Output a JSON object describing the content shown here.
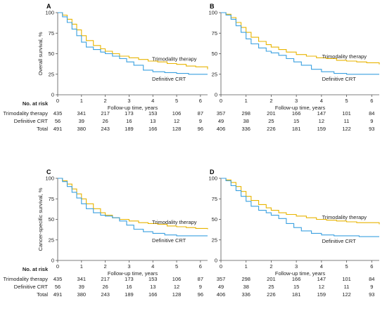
{
  "chart_data": [
    {
      "type": "line",
      "panel": "A",
      "ylabel": "Overall survival, %",
      "xlabel": "Follow-up time, years",
      "xlim": [
        0,
        6.3
      ],
      "ylim": [
        0,
        100
      ],
      "xticks": [
        0,
        1,
        2,
        3,
        4,
        5,
        6
      ],
      "yticks": [
        0,
        25,
        50,
        75,
        100
      ],
      "series": [
        {
          "name": "Trimodality therapy",
          "color": "#e8b400",
          "x": [
            0,
            0.2,
            0.4,
            0.6,
            0.8,
            1.0,
            1.2,
            1.5,
            1.8,
            2.0,
            2.3,
            2.6,
            3.0,
            3.4,
            3.8,
            4.2,
            4.6,
            5.0,
            5.4,
            5.8,
            6.3
          ],
          "y": [
            100,
            97,
            92,
            86,
            79,
            72,
            66,
            60,
            56,
            53,
            50,
            47,
            45,
            43,
            41,
            40,
            38,
            37,
            35,
            34,
            31
          ]
        },
        {
          "name": "Definitive CRT",
          "color": "#3aa0e0",
          "x": [
            0,
            0.2,
            0.4,
            0.6,
            0.8,
            1.0,
            1.2,
            1.5,
            1.8,
            2.0,
            2.3,
            2.6,
            2.9,
            3.2,
            3.6,
            4.0,
            4.5,
            5.0,
            5.5,
            6.0,
            6.3
          ],
          "y": [
            100,
            95,
            88,
            80,
            72,
            64,
            58,
            55,
            52,
            50,
            47,
            44,
            40,
            36,
            30,
            28,
            27,
            26,
            25,
            25,
            25
          ]
        }
      ],
      "risk_table": {
        "title": "No. at risk",
        "rows": [
          {
            "label": "Trimodality therapy",
            "values": [
              "435",
              "341",
              "217",
              "173",
              "153",
              "106",
              "87"
            ]
          },
          {
            "label": "Definitive CRT",
            "values": [
              "56",
              "39",
              "26",
              "16",
              "13",
              "12",
              "9"
            ]
          },
          {
            "label": "Total",
            "values": [
              "491",
              "380",
              "243",
              "189",
              "166",
              "128",
              "96"
            ]
          }
        ]
      }
    },
    {
      "type": "line",
      "panel": "B",
      "ylabel": "",
      "xlabel": "Follow-up time, years",
      "xlim": [
        0,
        6.3
      ],
      "ylim": [
        0,
        100
      ],
      "xticks": [
        0,
        1,
        2,
        3,
        4,
        5,
        6
      ],
      "yticks": [
        0,
        25,
        50,
        75,
        100
      ],
      "series": [
        {
          "name": "Trimodality therapy",
          "color": "#e8b400",
          "x": [
            0,
            0.2,
            0.4,
            0.6,
            0.8,
            1.0,
            1.2,
            1.5,
            1.8,
            2.0,
            2.3,
            2.6,
            3.0,
            3.4,
            3.8,
            4.2,
            4.6,
            5.0,
            5.4,
            5.8,
            6.3
          ],
          "y": [
            100,
            98,
            94,
            88,
            82,
            76,
            70,
            65,
            61,
            58,
            55,
            52,
            49,
            47,
            45,
            44,
            42,
            41,
            40,
            39,
            37
          ]
        },
        {
          "name": "Definitive CRT",
          "color": "#3aa0e0",
          "x": [
            0,
            0.2,
            0.4,
            0.6,
            0.8,
            1.0,
            1.2,
            1.5,
            1.8,
            2.0,
            2.3,
            2.6,
            2.9,
            3.2,
            3.6,
            4.0,
            4.5,
            5.0,
            5.5,
            6.0,
            6.3
          ],
          "y": [
            100,
            97,
            92,
            84,
            76,
            68,
            62,
            57,
            53,
            51,
            48,
            44,
            40,
            36,
            31,
            28,
            26,
            25,
            25,
            25,
            25
          ]
        }
      ],
      "risk_table": {
        "title": "",
        "rows": [
          {
            "label": "",
            "values": [
              "357",
              "298",
              "201",
              "166",
              "147",
              "101",
              "84"
            ]
          },
          {
            "label": "",
            "values": [
              "49",
              "38",
              "25",
              "15",
              "12",
              "11",
              "9"
            ]
          },
          {
            "label": "",
            "values": [
              "406",
              "336",
              "226",
              "181",
              "159",
              "122",
              "93"
            ]
          }
        ]
      }
    },
    {
      "type": "line",
      "panel": "C",
      "ylabel": "Cancer-specific survival, %",
      "xlabel": "Follow-up time, years",
      "xlim": [
        0,
        6.3
      ],
      "ylim": [
        0,
        100
      ],
      "xticks": [
        0,
        1,
        2,
        3,
        4,
        5,
        6
      ],
      "yticks": [
        0,
        25,
        50,
        75,
        100
      ],
      "series": [
        {
          "name": "Trimodality therapy",
          "color": "#e8b400",
          "x": [
            0,
            0.2,
            0.4,
            0.6,
            0.8,
            1.0,
            1.2,
            1.5,
            1.8,
            2.0,
            2.3,
            2.6,
            3.0,
            3.4,
            3.8,
            4.2,
            4.6,
            5.0,
            5.4,
            5.8,
            6.3
          ],
          "y": [
            100,
            97,
            93,
            87,
            81,
            75,
            69,
            63,
            58,
            55,
            52,
            50,
            48,
            46,
            45,
            44,
            42,
            41,
            40,
            39,
            38
          ]
        },
        {
          "name": "Definitive CRT",
          "color": "#3aa0e0",
          "x": [
            0,
            0.2,
            0.4,
            0.6,
            0.8,
            1.0,
            1.2,
            1.5,
            1.8,
            2.0,
            2.3,
            2.6,
            2.9,
            3.2,
            3.6,
            4.0,
            4.5,
            5.0,
            5.5,
            6.0,
            6.3
          ],
          "y": [
            100,
            96,
            90,
            83,
            76,
            69,
            63,
            58,
            55,
            54,
            52,
            48,
            43,
            38,
            35,
            33,
            31,
            30,
            30,
            30,
            30
          ]
        }
      ],
      "risk_table": {
        "title": "No. at risk",
        "rows": [
          {
            "label": "Trimodality therapy",
            "values": [
              "435",
              "341",
              "217",
              "173",
              "153",
              "106",
              "87"
            ]
          },
          {
            "label": "Definitive CRT",
            "values": [
              "56",
              "39",
              "26",
              "16",
              "13",
              "12",
              "9"
            ]
          },
          {
            "label": "Total",
            "values": [
              "491",
              "380",
              "243",
              "189",
              "166",
              "128",
              "96"
            ]
          }
        ]
      }
    },
    {
      "type": "line",
      "panel": "D",
      "ylabel": "",
      "xlabel": "Follow-up time, years",
      "xlim": [
        0,
        6.3
      ],
      "ylim": [
        0,
        100
      ],
      "xticks": [
        0,
        1,
        2,
        3,
        4,
        5,
        6
      ],
      "yticks": [
        0,
        25,
        50,
        75,
        100
      ],
      "series": [
        {
          "name": "Trimodality therapy",
          "color": "#e8b400",
          "x": [
            0,
            0.2,
            0.4,
            0.6,
            0.8,
            1.0,
            1.2,
            1.5,
            1.8,
            2.0,
            2.3,
            2.6,
            3.0,
            3.4,
            3.8,
            4.2,
            4.6,
            5.0,
            5.4,
            5.8,
            6.3
          ],
          "y": [
            100,
            98,
            95,
            90,
            84,
            78,
            73,
            68,
            64,
            61,
            58,
            56,
            54,
            52,
            50,
            49,
            48,
            47,
            46,
            46,
            44
          ]
        },
        {
          "name": "Definitive CRT",
          "color": "#3aa0e0",
          "x": [
            0,
            0.2,
            0.4,
            0.6,
            0.8,
            1.0,
            1.2,
            1.5,
            1.8,
            2.0,
            2.3,
            2.6,
            2.9,
            3.2,
            3.6,
            4.0,
            4.5,
            5.0,
            5.5,
            6.0,
            6.3
          ],
          "y": [
            100,
            97,
            91,
            85,
            78,
            72,
            66,
            61,
            58,
            55,
            51,
            45,
            40,
            36,
            33,
            31,
            30,
            30,
            29,
            29,
            29
          ]
        }
      ],
      "risk_table": {
        "title": "",
        "rows": [
          {
            "label": "",
            "values": [
              "357",
              "298",
              "201",
              "166",
              "147",
              "101",
              "84"
            ]
          },
          {
            "label": "",
            "values": [
              "49",
              "38",
              "25",
              "15",
              "12",
              "11",
              "9"
            ]
          },
          {
            "label": "",
            "values": [
              "406",
              "336",
              "226",
              "181",
              "159",
              "122",
              "93"
            ]
          }
        ]
      }
    }
  ]
}
